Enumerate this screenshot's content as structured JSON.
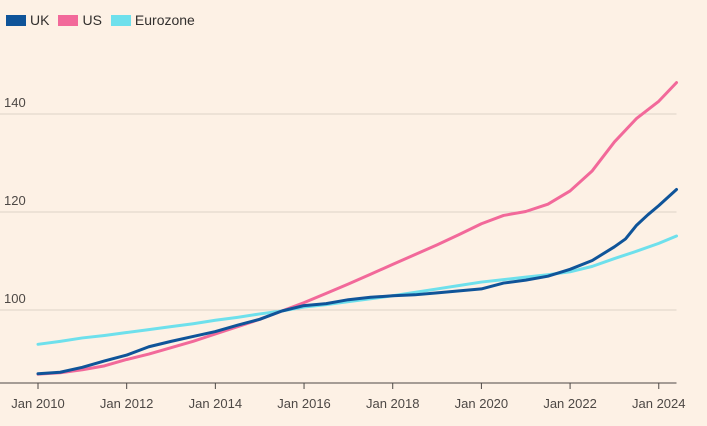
{
  "chart_data": {
    "type": "line",
    "title": "",
    "xlabel": "",
    "ylabel": "",
    "x_ticks": [
      "Jan 2010",
      "Jan 2012",
      "Jan 2014",
      "Jan 2016",
      "Jan 2018",
      "Jan 2020",
      "Jan 2022",
      "Jan 2024"
    ],
    "y_ticks": [
      "100",
      "120",
      "140"
    ],
    "xlim": [
      2010.0,
      2024.4
    ],
    "ylim": [
      85,
      150
    ],
    "grid": "horizontal",
    "legend_position": "top-left",
    "series": [
      {
        "name": "UK",
        "color": "#0f5499",
        "points": [
          [
            2010.0,
            87.0
          ],
          [
            2010.5,
            87.3
          ],
          [
            2011.0,
            88.3
          ],
          [
            2011.5,
            89.6
          ],
          [
            2012.0,
            90.8
          ],
          [
            2012.5,
            92.5
          ],
          [
            2013.0,
            93.6
          ],
          [
            2013.5,
            94.6
          ],
          [
            2014.0,
            95.6
          ],
          [
            2014.5,
            96.9
          ],
          [
            2015.0,
            98.1
          ],
          [
            2015.5,
            99.8
          ],
          [
            2016.0,
            100.9
          ],
          [
            2016.5,
            101.3
          ],
          [
            2017.0,
            102.1
          ],
          [
            2017.5,
            102.6
          ],
          [
            2018.0,
            102.9
          ],
          [
            2018.5,
            103.1
          ],
          [
            2019.0,
            103.5
          ],
          [
            2019.5,
            103.9
          ],
          [
            2020.0,
            104.3
          ],
          [
            2020.5,
            105.5
          ],
          [
            2021.0,
            106.1
          ],
          [
            2021.5,
            106.9
          ],
          [
            2022.0,
            108.3
          ],
          [
            2022.5,
            110.1
          ],
          [
            2023.0,
            112.9
          ],
          [
            2023.25,
            114.5
          ],
          [
            2023.5,
            117.3
          ],
          [
            2023.75,
            119.4
          ],
          [
            2024.0,
            121.3
          ],
          [
            2024.4,
            124.6
          ]
        ]
      },
      {
        "name": "US",
        "color": "#f2699a",
        "points": [
          [
            2010.0,
            86.9
          ],
          [
            2010.5,
            87.2
          ],
          [
            2011.0,
            87.8
          ],
          [
            2011.5,
            88.6
          ],
          [
            2012.0,
            89.9
          ],
          [
            2012.5,
            91.0
          ],
          [
            2013.0,
            92.3
          ],
          [
            2013.5,
            93.6
          ],
          [
            2014.0,
            95.1
          ],
          [
            2014.5,
            96.6
          ],
          [
            2015.0,
            98.1
          ],
          [
            2015.5,
            99.8
          ],
          [
            2016.0,
            101.5
          ],
          [
            2016.5,
            103.4
          ],
          [
            2017.0,
            105.3
          ],
          [
            2017.5,
            107.3
          ],
          [
            2018.0,
            109.3
          ],
          [
            2018.5,
            111.3
          ],
          [
            2019.0,
            113.3
          ],
          [
            2019.5,
            115.4
          ],
          [
            2020.0,
            117.6
          ],
          [
            2020.5,
            119.3
          ],
          [
            2021.0,
            120.1
          ],
          [
            2021.5,
            121.6
          ],
          [
            2022.0,
            124.3
          ],
          [
            2022.5,
            128.4
          ],
          [
            2023.0,
            134.3
          ],
          [
            2023.5,
            139.1
          ],
          [
            2024.0,
            142.6
          ],
          [
            2024.4,
            146.4
          ]
        ]
      },
      {
        "name": "Eurozone",
        "color": "#6ee0ec",
        "points": [
          [
            2010.0,
            93.0
          ],
          [
            2010.5,
            93.6
          ],
          [
            2011.0,
            94.3
          ],
          [
            2011.5,
            94.8
          ],
          [
            2012.0,
            95.4
          ],
          [
            2012.5,
            96.0
          ],
          [
            2013.0,
            96.6
          ],
          [
            2013.5,
            97.2
          ],
          [
            2014.0,
            97.9
          ],
          [
            2014.5,
            98.5
          ],
          [
            2015.0,
            99.2
          ],
          [
            2015.5,
            99.8
          ],
          [
            2016.0,
            100.6
          ],
          [
            2016.5,
            101.1
          ],
          [
            2017.0,
            101.7
          ],
          [
            2017.5,
            102.3
          ],
          [
            2018.0,
            102.9
          ],
          [
            2018.5,
            103.6
          ],
          [
            2019.0,
            104.3
          ],
          [
            2019.5,
            105.0
          ],
          [
            2020.0,
            105.7
          ],
          [
            2020.5,
            106.2
          ],
          [
            2021.0,
            106.7
          ],
          [
            2021.5,
            107.2
          ],
          [
            2022.0,
            107.8
          ],
          [
            2022.5,
            108.9
          ],
          [
            2023.0,
            110.5
          ],
          [
            2023.5,
            112.0
          ],
          [
            2024.0,
            113.6
          ],
          [
            2024.4,
            115.1
          ]
        ]
      }
    ]
  }
}
